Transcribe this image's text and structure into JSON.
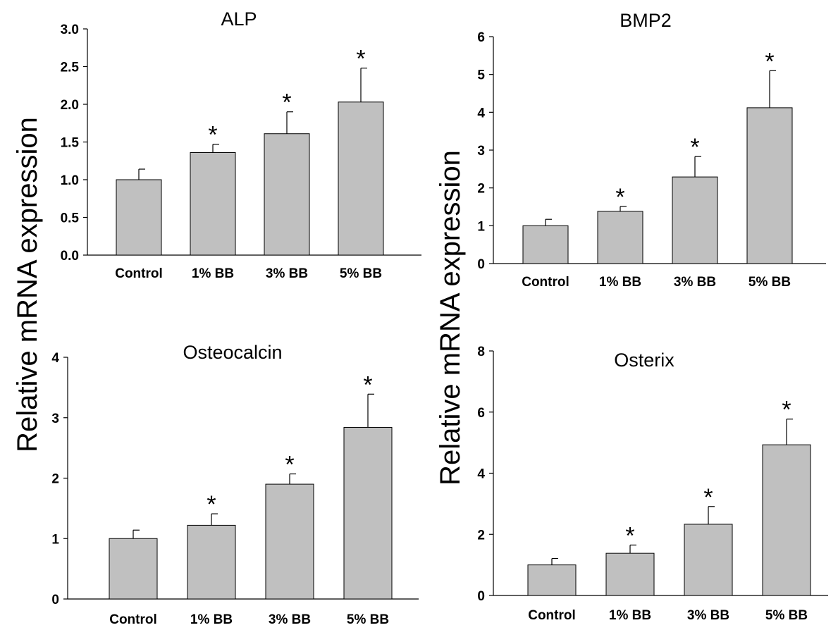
{
  "ylabel": "Relative mRNA expression",
  "chart_data": [
    {
      "type": "bar",
      "title": "ALP",
      "ylabel": "Relative mRNA expression",
      "categories": [
        "Control",
        "1% BB",
        "3% BB",
        "5% BB"
      ],
      "values": [
        1.0,
        1.36,
        1.61,
        2.03
      ],
      "errors": [
        0.14,
        0.11,
        0.29,
        0.45
      ],
      "significance": [
        "",
        "*",
        "*",
        "*"
      ],
      "ylim": [
        0,
        3.0
      ],
      "yticks": [
        "0.0",
        "0.5",
        "1.0",
        "1.5",
        "2.0",
        "2.5",
        "3.0"
      ],
      "ytick_values": [
        0,
        0.5,
        1.0,
        1.5,
        2.0,
        2.5,
        3.0
      ],
      "bar_color": "#c0c0c0",
      "grid": false
    },
    {
      "type": "bar",
      "title": "BMP2",
      "ylabel": "Relative mRNA expression",
      "categories": [
        "Control",
        "1% BB",
        "3% BB",
        "5% BB"
      ],
      "values": [
        1.0,
        1.38,
        2.29,
        4.12
      ],
      "errors": [
        0.17,
        0.13,
        0.54,
        0.98
      ],
      "significance": [
        "",
        "*",
        "*",
        "*"
      ],
      "ylim": [
        0,
        6
      ],
      "yticks": [
        "0",
        "1",
        "2",
        "3",
        "4",
        "5",
        "6"
      ],
      "ytick_values": [
        0,
        1,
        2,
        3,
        4,
        5,
        6
      ],
      "bar_color": "#c0c0c0",
      "grid": false
    },
    {
      "type": "bar",
      "title": "Osteocalcin",
      "ylabel": "Relative mRNA expression",
      "categories": [
        "Control",
        "1% BB",
        "3% BB",
        "5% BB"
      ],
      "values": [
        1.0,
        1.22,
        1.9,
        2.84
      ],
      "errors": [
        0.14,
        0.19,
        0.17,
        0.55
      ],
      "significance": [
        "",
        "*",
        "*",
        "*"
      ],
      "ylim": [
        0,
        4
      ],
      "yticks": [
        "0",
        "1",
        "2",
        "3",
        "4"
      ],
      "ytick_values": [
        0,
        1,
        2,
        3,
        4
      ],
      "bar_color": "#c0c0c0",
      "grid": false
    },
    {
      "type": "bar",
      "title": "Osterix",
      "ylabel": "Relative mRNA expression",
      "categories": [
        "Control",
        "1% BB",
        "3% BB",
        "5% BB"
      ],
      "values": [
        1.0,
        1.38,
        2.33,
        4.93
      ],
      "errors": [
        0.21,
        0.27,
        0.58,
        0.84
      ],
      "significance": [
        "",
        "*",
        "*",
        "*"
      ],
      "ylim": [
        0,
        8
      ],
      "yticks": [
        "0",
        "2",
        "4",
        "6",
        "8"
      ],
      "ytick_values": [
        0,
        2,
        4,
        6,
        8
      ],
      "bar_color": "#c0c0c0",
      "grid": false
    }
  ]
}
